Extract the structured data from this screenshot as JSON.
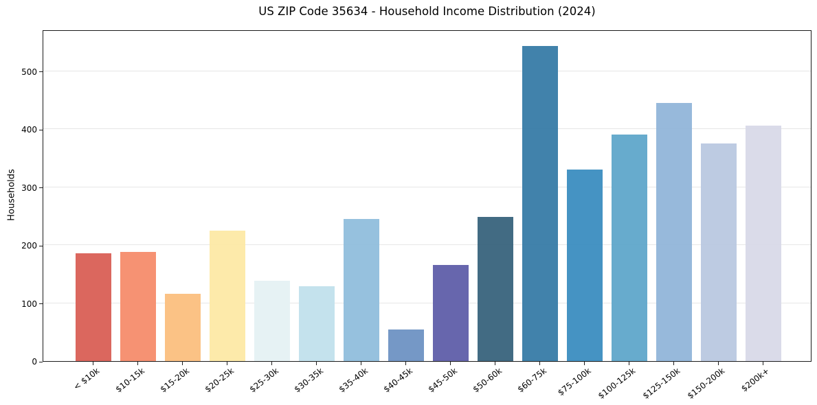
{
  "chart_data": {
    "type": "bar",
    "title": "US ZIP Code 35634 - Household Income Distribution (2024)",
    "xlabel": "",
    "ylabel": "Households",
    "categories": [
      "< $10k",
      "$10-15k",
      "$15-20k",
      "$20-25k",
      "$25-30k",
      "$30-35k",
      "$35-40k",
      "$40-45k",
      "$45-50k",
      "$50-60k",
      "$60-75k",
      "$75-100k",
      "$100-125k",
      "$125-150k",
      "$150-200k",
      "$200k+"
    ],
    "values": [
      186,
      188,
      116,
      225,
      138,
      129,
      245,
      55,
      166,
      249,
      544,
      330,
      391,
      445,
      376,
      406
    ],
    "bar_colors": [
      "#d85b52",
      "#f58a68",
      "#fbbd7c",
      "#fde8a4",
      "#e4f1f3",
      "#bfe0ec",
      "#8ebcdc",
      "#6a90c2",
      "#5b5aa7",
      "#34607a",
      "#3379a5",
      "#378bbe",
      "#5ba5c9",
      "#8fb4d8",
      "#b8c7e0",
      "#d7d8e7"
    ],
    "yticks": [
      0,
      100,
      200,
      300,
      400,
      500
    ],
    "ylim": [
      0,
      572
    ],
    "grid": "horizontal",
    "legend": "none",
    "background_color": "#ffffff",
    "axis_color": "#1a1a1a",
    "gridline_color": "#e6e6e6"
  }
}
